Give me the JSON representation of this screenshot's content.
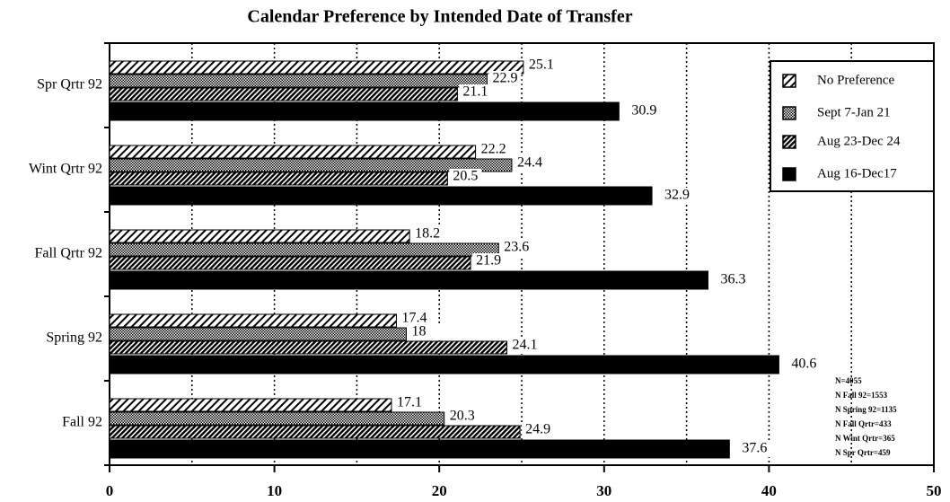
{
  "chart_data": {
    "type": "hbar",
    "title": "Calendar Preference by Intended Date of Transfer",
    "categories": [
      "Spr Qrtr 92",
      "Wint Qrtr 92",
      "Fall Qrtr 92",
      "Spring 92",
      "Fall 92"
    ],
    "series": [
      {
        "name": "No Preference",
        "color": "#000000",
        "pattern": "hatch",
        "values": [
          25.1,
          22.2,
          18.2,
          17.4,
          17.1
        ]
      },
      {
        "name": "Sept 7-Jan 21",
        "color": "#000000",
        "pattern": "cross",
        "values": [
          22.9,
          24.4,
          23.6,
          18,
          20.3
        ]
      },
      {
        "name": "Aug 23-Dec 24",
        "color": "#000000",
        "pattern": "dense",
        "values": [
          21.1,
          20.5,
          21.9,
          24.1,
          24.9
        ]
      },
      {
        "name": "Aug 16-Dec17",
        "color": "#000000",
        "pattern": "solid",
        "values": [
          30.9,
          32.9,
          36.3,
          40.6,
          37.6
        ]
      }
    ],
    "xlim": [
      0,
      50
    ],
    "xticks": [
      0,
      10,
      20,
      30,
      40,
      50
    ],
    "xgrid": [
      5,
      10,
      15,
      20,
      25,
      30,
      35,
      40,
      45
    ],
    "legend": "top-right",
    "notes": [
      "N=4055",
      "N Fall 92=1553",
      "N Spring 92=1135",
      "N Fall Qrtr=433",
      "N Wint Qrtr=365",
      "N Spr Qrtr=459"
    ]
  }
}
